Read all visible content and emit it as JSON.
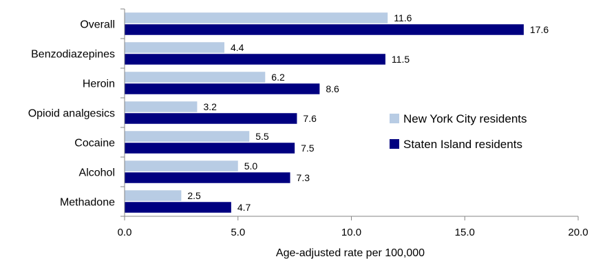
{
  "chart_data": {
    "type": "bar",
    "orientation": "horizontal",
    "categories": [
      "Overall",
      "Benzodiazepines",
      "Heroin",
      "Opioid analgesics",
      "Cocaine",
      "Alcohol",
      "Methadone"
    ],
    "series": [
      {
        "name": "New York City residents",
        "values": [
          11.6,
          4.4,
          6.2,
          3.2,
          5.5,
          5.0,
          2.5
        ],
        "labels": [
          "11.6",
          "4.4",
          "6.2",
          "3.2",
          "5.5",
          "5.0",
          "2.5"
        ],
        "color": "#b8cce4"
      },
      {
        "name": "Staten Island residents",
        "values": [
          17.6,
          11.5,
          8.6,
          7.6,
          7.5,
          7.3,
          4.7
        ],
        "labels": [
          "17.6",
          "11.5",
          "8.6",
          "7.6",
          "7.5",
          "7.3",
          "4.7"
        ],
        "color": "#000080"
      }
    ],
    "x_ticks": [
      "0.0",
      "5.0",
      "10.0",
      "15.0",
      "20.0"
    ],
    "xlim": [
      0,
      20
    ],
    "xlabel": "Age-adjusted rate  per 100,000",
    "ylabel": "",
    "title": "",
    "grid": false,
    "legend_position": "right"
  }
}
